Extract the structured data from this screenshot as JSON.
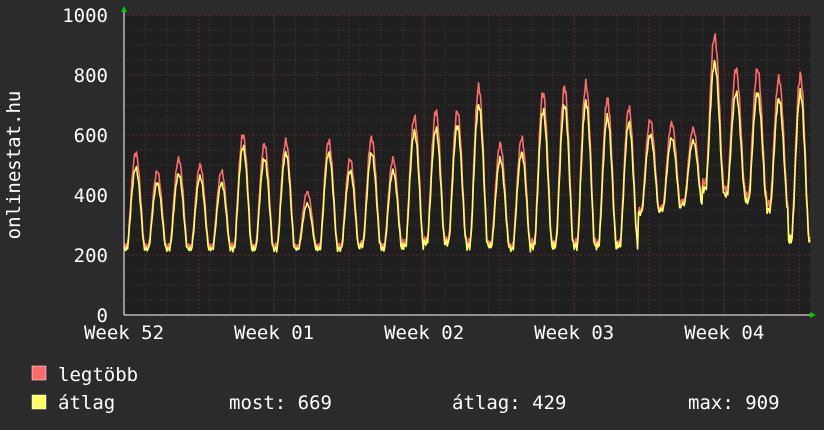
{
  "chart_data": {
    "type": "line",
    "ylabel": "onlinestat.hu",
    "ylim": [
      0,
      1000
    ],
    "yticks": [
      0,
      200,
      400,
      600,
      800,
      1000
    ],
    "xticks": [
      "Week 52",
      "Week 01",
      "Week 02",
      "Week 03",
      "Week 04"
    ],
    "x_days": [
      0,
      7,
      14,
      21,
      28
    ],
    "grid": true,
    "colors": {
      "background": "#2b2b2b",
      "plot": "#1f1f1f",
      "grid_major": "#5a2a2a",
      "grid_minor": "#3c3c3c",
      "legtobb": "#ff6b6b",
      "atlag": "#ffff66",
      "axis": "#ffffff",
      "arrow": "#00cc00"
    },
    "series": [
      {
        "name": "legtöbb",
        "daily_peaks": [
          540,
          480,
          520,
          500,
          480,
          600,
          570,
          580,
          410,
          580,
          520,
          590,
          520,
          660,
          680,
          680,
          760,
          570,
          590,
          740,
          760,
          770,
          720,
          690,
          650,
          640,
          620,
          930,
          820,
          820,
          790,
          800
        ],
        "daily_troughs": [
          230,
          230,
          230,
          230,
          230,
          230,
          230,
          230,
          230,
          230,
          230,
          240,
          230,
          240,
          250,
          250,
          240,
          240,
          230,
          240,
          240,
          240,
          240,
          240,
          350,
          360,
          380,
          440,
          420,
          400,
          370,
          260
        ]
      },
      {
        "name": "átlag",
        "daily_peaks": [
          490,
          440,
          470,
          460,
          440,
          560,
          520,
          540,
          370,
          540,
          480,
          540,
          480,
          610,
          620,
          630,
          700,
          520,
          540,
          680,
          700,
          710,
          660,
          640,
          600,
          590,
          580,
          840,
          740,
          740,
          720,
          740
        ],
        "daily_troughs": [
          220,
          220,
          220,
          220,
          220,
          220,
          220,
          220,
          220,
          220,
          220,
          230,
          220,
          230,
          240,
          240,
          230,
          230,
          220,
          230,
          230,
          230,
          230,
          230,
          340,
          350,
          370,
          420,
          400,
          380,
          350,
          250
        ]
      }
    ]
  },
  "legend": {
    "items": [
      {
        "label": "legtöbb",
        "color": "#ff6b6b"
      },
      {
        "label": "átlag",
        "color": "#ffff66"
      }
    ],
    "stats": {
      "now": "most: 669",
      "avg": "átlag: 429",
      "max": "max: 909"
    }
  }
}
